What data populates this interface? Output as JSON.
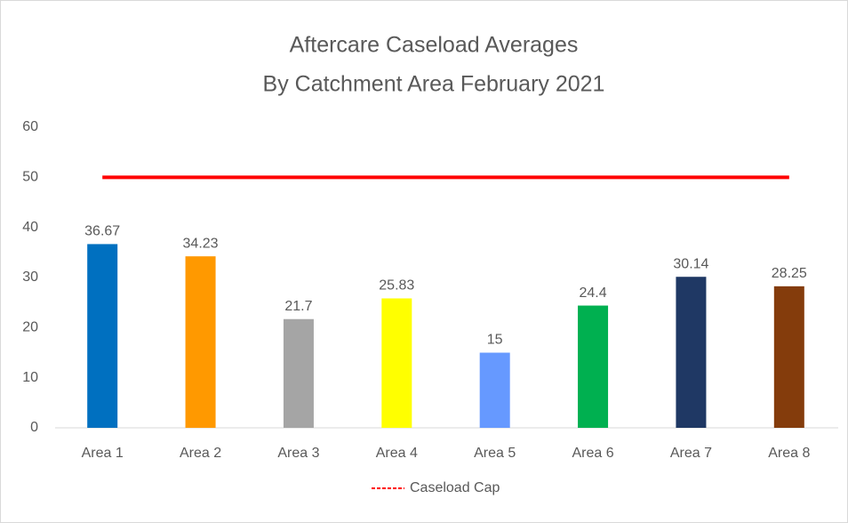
{
  "chart_data": {
    "type": "bar",
    "title": "Aftercare Caseload Averages",
    "subtitle": "By Catchment Area February 2021",
    "categories": [
      "Area 1",
      "Area 2",
      "Area 3",
      "Area 4",
      "Area 5",
      "Area 6",
      "Area 7",
      "Area 8"
    ],
    "series": [
      {
        "values": [
          36.67,
          34.23,
          21.7,
          25.83,
          15,
          24.4,
          30.14,
          28.25
        ],
        "colors": [
          "#0070c0",
          "#ff9900",
          "#a5a5a5",
          "#ffff00",
          "#6699ff",
          "#00b050",
          "#1f3864",
          "#843c0c"
        ]
      },
      {
        "name": "Caseload Cap",
        "type": "line",
        "color": "#ff0000",
        "values": [
          50,
          50,
          50,
          50,
          50,
          50,
          50,
          50
        ]
      }
    ],
    "ylim": [
      0,
      60
    ],
    "yticks": [
      0,
      10,
      20,
      30,
      40,
      50,
      60
    ],
    "grid": false,
    "legend": "bottom"
  }
}
